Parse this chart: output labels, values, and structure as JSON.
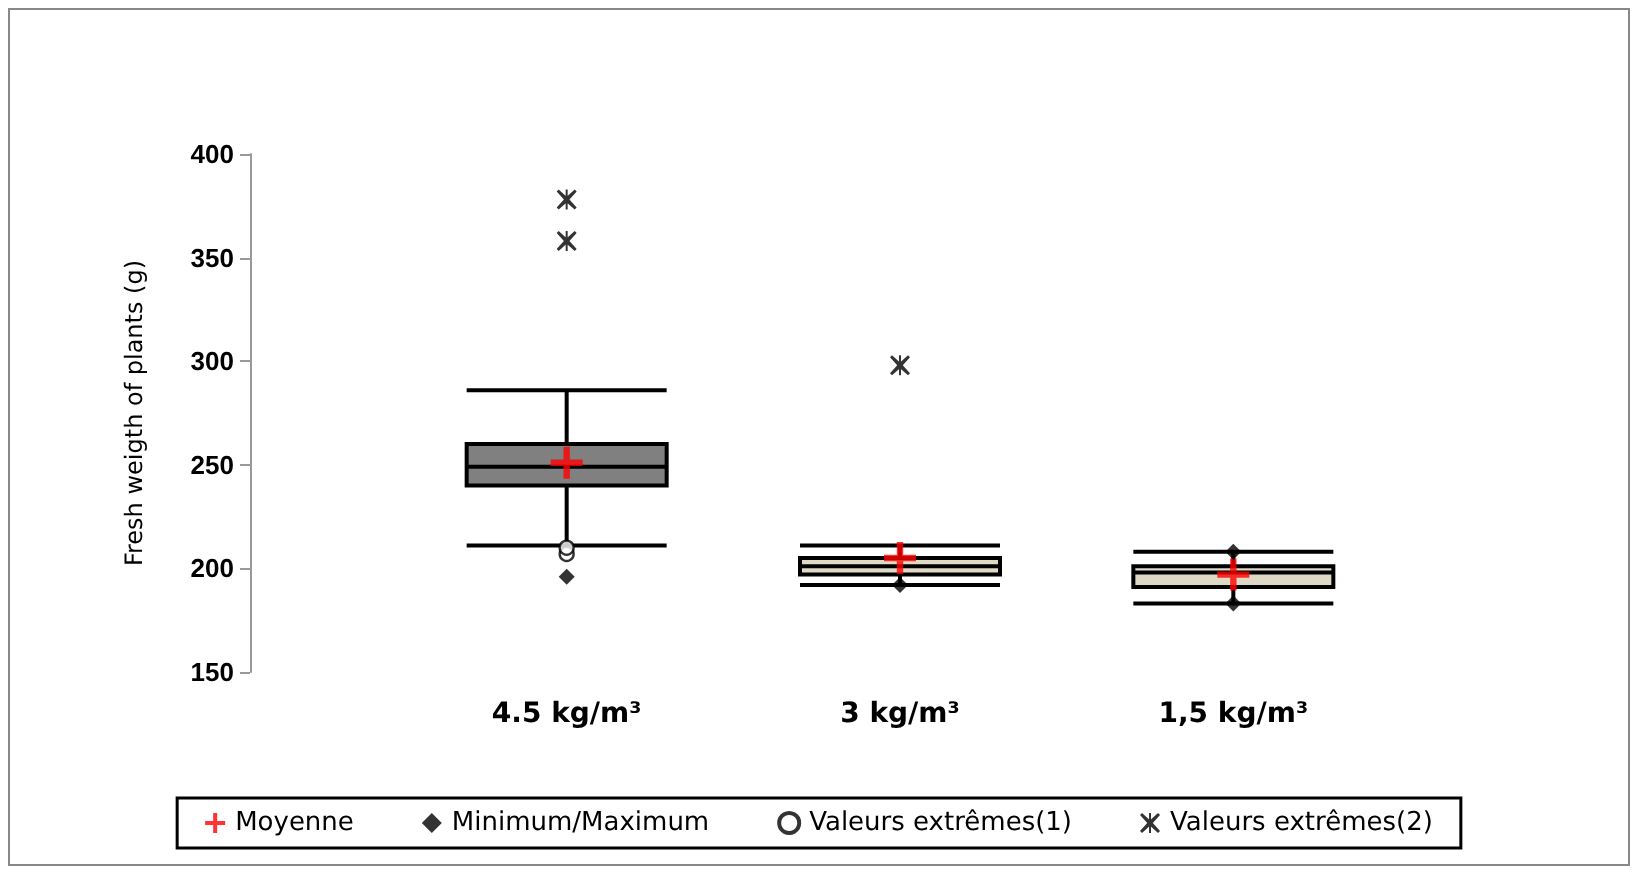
{
  "chart_data": {
    "type": "box",
    "ylabel": "Fresh weigth of plants (g)",
    "categories": [
      "4.5 kg/m³",
      "3 kg/m³",
      "1,5 kg/m³"
    ],
    "colors": [
      "#808080",
      "#ddd9c4",
      "#ddd9c4"
    ],
    "boxes": [
      {
        "low": 211,
        "q1": 240,
        "median": 249,
        "q3": 260,
        "high": 286
      },
      {
        "low": 192,
        "q1": 197,
        "median": 201,
        "q3": 205,
        "high": 211
      },
      {
        "low": 183,
        "q1": 191,
        "median": 198,
        "q3": 201,
        "high": 208
      }
    ],
    "series": [
      {
        "type": "scatter",
        "name": "Moyenne",
        "color": "#ff0000",
        "marker": "cross",
        "x": [
          "4.5 kg/m³",
          "3 kg/m³",
          "1,5 kg/m³"
        ],
        "values": [
          251,
          205,
          197
        ]
      },
      {
        "type": "scatter",
        "name": "Minimum/Maximum",
        "color": "#000000",
        "marker": "diamond",
        "x": [
          "4.5 kg/m³",
          "3 kg/m³",
          "1,5 kg/m³",
          "1,5 kg/m³"
        ],
        "values": [
          196,
          192,
          183,
          208
        ]
      },
      {
        "type": "scatter",
        "name": "Valeurs extrêmes(1)",
        "color": "#000000",
        "marker": "circle",
        "x": [
          "4.5 kg/m³",
          "4.5 kg/m³"
        ],
        "values": [
          207,
          210
        ]
      },
      {
        "type": "scatter",
        "name": "Valeurs extrêmes(2)",
        "color": "#000000",
        "marker": "star",
        "x": [
          "4.5 kg/m³",
          "4.5 kg/m³",
          "3 kg/m³"
        ],
        "values": [
          378,
          358,
          298
        ]
      }
    ],
    "ylim": [
      150,
      400
    ],
    "yticks": [
      150,
      200,
      250,
      300,
      350,
      400
    ],
    "grid": false,
    "legend": "bottom"
  }
}
